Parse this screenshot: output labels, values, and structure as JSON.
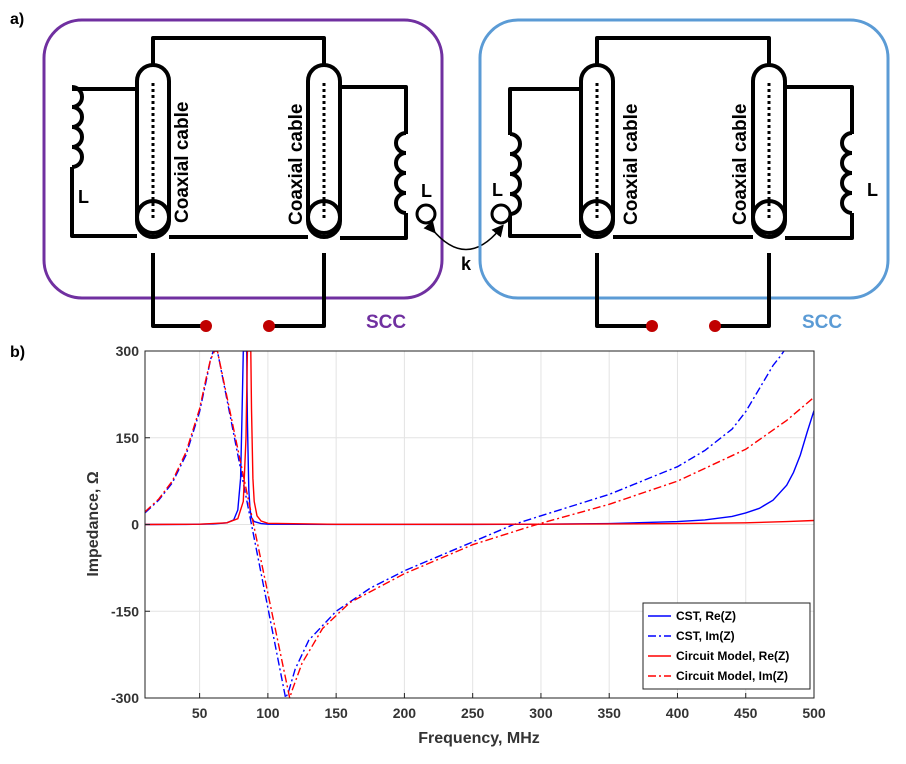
{
  "panel_a": {
    "label": "a)",
    "coil_label": "L",
    "coax_label": "Coaxial cable",
    "coupling_label": "k",
    "left_box": {
      "label": "SCC",
      "color": "#7030a0"
    },
    "right_box": {
      "label": "SCC",
      "color": "#5b9bd5"
    },
    "port_color": "#c00000"
  },
  "panel_b": {
    "label": "b)"
  },
  "chart_data": {
    "type": "line",
    "xlabel": "Frequency, MHz",
    "ylabel": "Impedance, Ω",
    "xlim": [
      10,
      500
    ],
    "ylim": [
      -300,
      300
    ],
    "xticks": [
      50,
      100,
      150,
      200,
      250,
      300,
      350,
      400,
      450,
      500
    ],
    "yticks": [
      -300,
      -150,
      0,
      150,
      300
    ],
    "grid": true,
    "legend_position": "bottom-right",
    "series": [
      {
        "name": "CST, Re(Z)",
        "color": "#0000ff",
        "dash": "solid",
        "x": [
          10,
          40,
          60,
          70,
          75,
          78,
          80,
          81,
          82,
          83,
          83.5,
          84,
          84.5,
          85,
          86,
          87,
          88,
          90,
          95,
          100,
          150,
          200,
          250,
          300,
          350,
          400,
          420,
          440,
          450,
          460,
          470,
          480,
          485,
          490,
          495,
          500
        ],
        "y": [
          0,
          0.2,
          1,
          3,
          8,
          25,
          80,
          180,
          300,
          300,
          300,
          300,
          300,
          180,
          60,
          25,
          12,
          5,
          1.5,
          0.5,
          0.1,
          0.1,
          0.2,
          0.5,
          1.5,
          5,
          8,
          14,
          20,
          28,
          42,
          68,
          90,
          120,
          160,
          197
        ]
      },
      {
        "name": "CST, Im(Z)",
        "color": "#0000ff",
        "dash": "dashdot",
        "x": [
          10,
          20,
          30,
          40,
          50,
          55,
          58,
          60,
          62,
          63,
          113,
          115,
          120,
          130,
          150,
          175,
          200,
          250,
          280,
          300,
          350,
          400,
          420,
          440,
          450,
          460,
          470,
          475,
          478
        ],
        "y": [
          20,
          42,
          72,
          120,
          195,
          250,
          285,
          300,
          300,
          300,
          -300,
          -290,
          -250,
          -200,
          -150,
          -110,
          -80,
          -30,
          0,
          15,
          52,
          100,
          128,
          165,
          195,
          235,
          275,
          290,
          300
        ]
      },
      {
        "name": "Circuit Model, Re(Z)",
        "color": "#ff0000",
        "dash": "solid",
        "x": [
          10,
          50,
          70,
          78,
          82,
          84,
          85,
          86,
          86.5,
          87,
          87.5,
          88,
          89,
          90,
          92,
          95,
          100,
          150,
          200,
          300,
          400,
          450,
          480,
          500
        ],
        "y": [
          0,
          0.5,
          3,
          10,
          40,
          150,
          300,
          300,
          300,
          300,
          300,
          200,
          80,
          40,
          15,
          6,
          2,
          0.3,
          0.3,
          0.5,
          1.5,
          3,
          5,
          7
        ]
      },
      {
        "name": "Circuit Model, Im(Z)",
        "color": "#ff0000",
        "dash": "dashdot",
        "x": [
          10,
          20,
          30,
          40,
          50,
          55,
          58,
          61,
          62,
          63,
          116,
          118,
          125,
          140,
          160,
          200,
          250,
          290,
          300,
          350,
          400,
          450,
          480,
          500
        ],
        "y": [
          22,
          44,
          75,
          125,
          200,
          255,
          285,
          300,
          300,
          300,
          -300,
          -285,
          -240,
          -180,
          -135,
          -85,
          -35,
          -5,
          2,
          35,
          75,
          130,
          180,
          220
        ]
      }
    ]
  }
}
